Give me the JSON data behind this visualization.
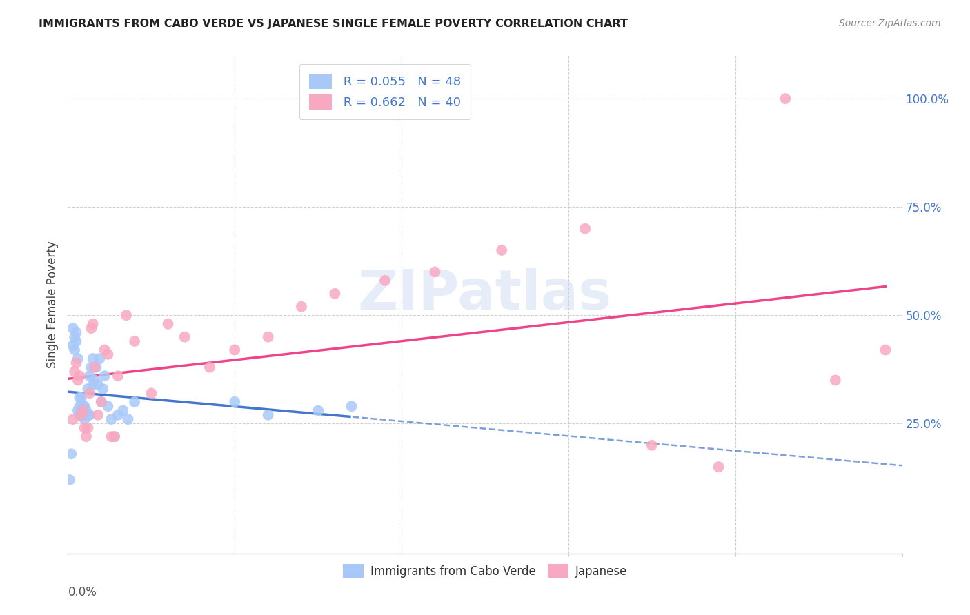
{
  "title": "IMMIGRANTS FROM CABO VERDE VS JAPANESE SINGLE FEMALE POVERTY CORRELATION CHART",
  "source": "Source: ZipAtlas.com",
  "ylabel": "Single Female Poverty",
  "legend_label1": "Immigrants from Cabo Verde",
  "legend_label2": "Japanese",
  "r1": 0.055,
  "n1": 48,
  "r2": 0.662,
  "n2": 40,
  "color1": "#a8c8f8",
  "color2": "#f8a8c0",
  "line1_color": "#4477cc",
  "line2_color": "#ee4488",
  "watermark": "ZIPatlas",
  "xlim": [
    0.0,
    0.5
  ],
  "ylim": [
    -0.05,
    1.1
  ],
  "ytick_positions": [
    0.25,
    0.5,
    0.75,
    1.0
  ],
  "ytick_labels": [
    "25.0%",
    "50.0%",
    "75.0%",
    "100.0%"
  ],
  "cabo_verde_x": [
    0.001,
    0.002,
    0.003,
    0.003,
    0.004,
    0.004,
    0.005,
    0.005,
    0.006,
    0.006,
    0.007,
    0.007,
    0.007,
    0.008,
    0.008,
    0.008,
    0.009,
    0.009,
    0.01,
    0.01,
    0.01,
    0.011,
    0.011,
    0.012,
    0.012,
    0.013,
    0.013,
    0.014,
    0.015,
    0.015,
    0.016,
    0.017,
    0.018,
    0.019,
    0.02,
    0.021,
    0.022,
    0.024,
    0.026,
    0.028,
    0.03,
    0.033,
    0.036,
    0.04,
    0.1,
    0.12,
    0.15,
    0.17
  ],
  "cabo_verde_y": [
    0.12,
    0.18,
    0.43,
    0.47,
    0.42,
    0.45,
    0.44,
    0.46,
    0.28,
    0.4,
    0.27,
    0.29,
    0.31,
    0.27,
    0.28,
    0.31,
    0.27,
    0.29,
    0.26,
    0.27,
    0.29,
    0.27,
    0.28,
    0.27,
    0.33,
    0.27,
    0.36,
    0.38,
    0.34,
    0.4,
    0.35,
    0.38,
    0.34,
    0.4,
    0.3,
    0.33,
    0.36,
    0.29,
    0.26,
    0.22,
    0.27,
    0.28,
    0.26,
    0.3,
    0.3,
    0.27,
    0.28,
    0.29
  ],
  "japanese_x": [
    0.003,
    0.004,
    0.005,
    0.006,
    0.007,
    0.008,
    0.009,
    0.01,
    0.011,
    0.012,
    0.013,
    0.014,
    0.015,
    0.016,
    0.018,
    0.02,
    0.022,
    0.024,
    0.026,
    0.028,
    0.03,
    0.035,
    0.04,
    0.05,
    0.06,
    0.07,
    0.085,
    0.1,
    0.12,
    0.14,
    0.16,
    0.19,
    0.22,
    0.26,
    0.31,
    0.35,
    0.39,
    0.43,
    0.46,
    0.49
  ],
  "japanese_y": [
    0.26,
    0.37,
    0.39,
    0.35,
    0.36,
    0.27,
    0.28,
    0.24,
    0.22,
    0.24,
    0.32,
    0.47,
    0.48,
    0.38,
    0.27,
    0.3,
    0.42,
    0.41,
    0.22,
    0.22,
    0.36,
    0.5,
    0.44,
    0.32,
    0.48,
    0.45,
    0.38,
    0.42,
    0.45,
    0.52,
    0.55,
    0.58,
    0.6,
    0.65,
    0.7,
    0.2,
    0.15,
    1.0,
    0.35,
    0.42
  ]
}
